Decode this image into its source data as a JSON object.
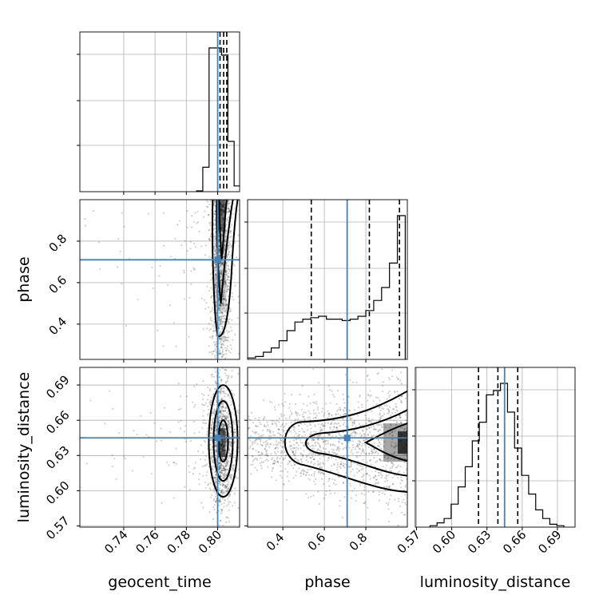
{
  "chart_data": {
    "type": "corner",
    "parameters": [
      "geocent_time",
      "phase",
      "luminosity_distance"
    ],
    "axis_labels": {
      "geocent_time": "geocent_time",
      "phase": "phase",
      "luminosity_distance": "luminosity_distance"
    },
    "truths": {
      "geocent_time": 0.8,
      "phase": 0.71,
      "luminosity_distance": 0.645
    },
    "colors": {
      "truth": "#4682b4",
      "contour": "#000000",
      "hist": "#000000",
      "grid": "#b0b0b0"
    },
    "grid": true,
    "panels": [
      {
        "id": "hist-geocent_time",
        "type": "histogram",
        "x": "geocent_time",
        "xlim": [
          0.712,
          0.814
        ],
        "x_ticks": [
          0.74,
          0.76,
          0.78,
          0.8
        ],
        "x_tick_labels": [],
        "bins": [
          0.7865,
          0.7905,
          0.7945,
          0.7985,
          0.8025,
          0.8065,
          0.8105,
          0.8145
        ],
        "counts": [
          0.006,
          0.17,
          1.0,
          1.0,
          0.95,
          0.35,
          0.04
        ],
        "quantiles": [
          0.8015,
          0.8038,
          0.8058
        ]
      },
      {
        "id": "hist-phase",
        "type": "histogram",
        "x": "phase",
        "xlim": [
          0.23,
          1.0
        ],
        "x_ticks": [
          0.4,
          0.6,
          0.8
        ],
        "x_tick_labels": [],
        "bins": [
          0.23,
          0.268,
          0.306,
          0.344,
          0.382,
          0.42,
          0.458,
          0.496,
          0.534,
          0.572,
          0.61,
          0.648,
          0.686,
          0.724,
          0.762,
          0.8,
          0.838,
          0.876,
          0.914,
          0.952,
          0.99
        ],
        "counts": [
          0.01,
          0.02,
          0.05,
          0.08,
          0.13,
          0.2,
          0.26,
          0.28,
          0.29,
          0.3,
          0.28,
          0.28,
          0.27,
          0.28,
          0.3,
          0.34,
          0.41,
          0.5,
          0.67,
          1.0
        ],
        "quantiles": [
          0.537,
          0.817,
          0.962
        ]
      },
      {
        "id": "hist-luminosity_distance",
        "type": "histogram",
        "x": "luminosity_distance",
        "xlim": [
          0.569,
          0.705
        ],
        "x_ticks": [
          0.57,
          0.6,
          0.63,
          0.66,
          0.69
        ],
        "x_tick_labels": [
          "0.57",
          "0.60",
          "0.63",
          "0.66",
          "0.69"
        ],
        "x_label": "luminosity_distance",
        "bins": [
          0.5815,
          0.5875,
          0.5935,
          0.5995,
          0.6055,
          0.6115,
          0.6175,
          0.6235,
          0.6295,
          0.6355,
          0.6415,
          0.6475,
          0.6535,
          0.6595,
          0.6655,
          0.6715,
          0.6775,
          0.6835,
          0.6895,
          0.6955
        ],
        "counts": [
          0.01,
          0.03,
          0.06,
          0.16,
          0.28,
          0.42,
          0.6,
          0.73,
          0.92,
          0.95,
          1.0,
          0.8,
          0.55,
          0.36,
          0.23,
          0.12,
          0.06,
          0.02,
          0.01
        ],
        "quantiles": [
          0.6228,
          0.6393,
          0.6562
        ]
      },
      {
        "id": "2d-geocent_time-phase",
        "type": "density2d",
        "x": "geocent_time",
        "y": "phase",
        "xlim": [
          0.712,
          0.814
        ],
        "ylim": [
          0.23,
          1.0
        ],
        "x_ticks": [
          0.74,
          0.76,
          0.78,
          0.8
        ],
        "x_tick_labels": [],
        "y_ticks": [
          0.4,
          0.6,
          0.8
        ],
        "y_tick_labels": [
          "0.4",
          "0.6",
          "0.8"
        ],
        "y_label": "phase",
        "center": [
          0.802,
          0.71
        ]
      },
      {
        "id": "2d-geocent_time-luminosity_distance",
        "type": "density2d",
        "x": "geocent_time",
        "y": "luminosity_distance",
        "xlim": [
          0.712,
          0.814
        ],
        "ylim": [
          0.569,
          0.705
        ],
        "x_ticks": [
          0.74,
          0.76,
          0.78,
          0.8
        ],
        "x_tick_labels": [
          "0.74",
          "0.76",
          "0.78",
          "0.80"
        ],
        "x_label": "geocent_time",
        "y_ticks": [
          0.57,
          0.6,
          0.63,
          0.66,
          0.69
        ],
        "y_tick_labels": [
          "0.57",
          "0.60",
          "0.63",
          "0.66",
          "0.69"
        ],
        "y_label": "luminosity_distance",
        "center": [
          0.8025,
          0.641
        ]
      },
      {
        "id": "2d-phase-luminosity_distance",
        "type": "density2d",
        "x": "phase",
        "y": "luminosity_distance",
        "xlim": [
          0.23,
          1.0
        ],
        "ylim": [
          0.569,
          0.705
        ],
        "x_ticks": [
          0.4,
          0.6,
          0.8
        ],
        "x_tick_labels": [
          "0.4",
          "0.6",
          "0.8"
        ],
        "x_label": "phase",
        "y_ticks": [
          0.57,
          0.6,
          0.63,
          0.66,
          0.69
        ],
        "y_tick_labels": [],
        "center": [
          0.98,
          0.641
        ]
      }
    ]
  }
}
